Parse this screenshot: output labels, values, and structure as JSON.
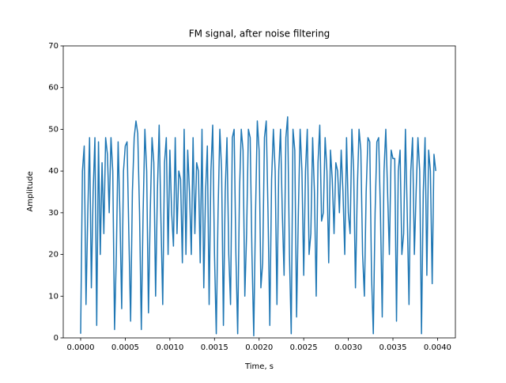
{
  "chart_data": {
    "type": "line",
    "title": "FM signal, after noise filtering",
    "xlabel": "Time, s",
    "ylabel": "Amplitude",
    "x": [
      0,
      2e-05,
      4e-05,
      6e-05,
      8e-05,
      0.0001,
      0.00012,
      0.00014,
      0.00016,
      0.00018,
      0.0002,
      0.00022,
      0.00024,
      0.00026,
      0.00028,
      0.0003,
      0.00032,
      0.00034,
      0.00036,
      0.00038,
      0.0004,
      0.00042,
      0.00044,
      0.00046,
      0.00048,
      0.0005,
      0.00052,
      0.00054,
      0.00056,
      0.00058,
      0.0006,
      0.00062,
      0.00064,
      0.00066,
      0.00068,
      0.0007,
      0.00072,
      0.00074,
      0.00076,
      0.00078,
      0.0008,
      0.00082,
      0.00084,
      0.00086,
      0.00088,
      0.0009,
      0.00092,
      0.00094,
      0.00096,
      0.00098,
      0.001,
      0.00102,
      0.00104,
      0.00106,
      0.00108,
      0.0011,
      0.00112,
      0.00114,
      0.00116,
      0.00118,
      0.0012,
      0.00122,
      0.00124,
      0.00126,
      0.00128,
      0.0013,
      0.00132,
      0.00134,
      0.00136,
      0.00138,
      0.0014,
      0.00142,
      0.00144,
      0.00146,
      0.00148,
      0.0015,
      0.00152,
      0.00154,
      0.00156,
      0.00158,
      0.0016,
      0.00162,
      0.00164,
      0.00166,
      0.00168,
      0.0017,
      0.00172,
      0.00174,
      0.00176,
      0.00178,
      0.0018,
      0.00182,
      0.00184,
      0.00186,
      0.00188,
      0.0019,
      0.00192,
      0.00194,
      0.00196,
      0.00198,
      0.002,
      0.00202,
      0.00204,
      0.00206,
      0.00208,
      0.0021,
      0.00212,
      0.00214,
      0.00216,
      0.00218,
      0.0022,
      0.00222,
      0.00224,
      0.00226,
      0.00228,
      0.0023,
      0.00232,
      0.00234,
      0.00236,
      0.00238,
      0.0024,
      0.00242,
      0.00244,
      0.00246,
      0.00248,
      0.0025,
      0.00252,
      0.00254,
      0.00256,
      0.00258,
      0.0026,
      0.00262,
      0.00264,
      0.00266,
      0.00268,
      0.0027,
      0.00272,
      0.00274,
      0.00276,
      0.00278,
      0.0028,
      0.00282,
      0.00284,
      0.00286,
      0.00288,
      0.0029,
      0.00292,
      0.00294,
      0.00296,
      0.00298,
      0.003,
      0.00302,
      0.00304,
      0.00306,
      0.00308,
      0.0031,
      0.00312,
      0.00314,
      0.00316,
      0.00318,
      0.0032,
      0.00322,
      0.00324,
      0.00326,
      0.00328,
      0.0033,
      0.00332,
      0.00334,
      0.00336,
      0.00338,
      0.0034,
      0.00342,
      0.00344,
      0.00346,
      0.00348,
      0.0035,
      0.00352,
      0.00354,
      0.00356,
      0.00358,
      0.0036,
      0.00362,
      0.00364,
      0.00366,
      0.00368,
      0.0037,
      0.00372,
      0.00374,
      0.00376,
      0.00378,
      0.0038,
      0.00382,
      0.00384,
      0.00386,
      0.00388,
      0.0039,
      0.00392,
      0.00394,
      0.00396,
      0.00398
    ],
    "series": [
      {
        "color": "#1f77b4",
        "values": [
          1,
          40,
          46,
          8,
          30,
          48,
          12,
          35,
          48,
          3,
          47,
          20,
          42,
          25,
          48,
          44,
          30,
          48,
          40,
          2,
          20,
          47,
          30,
          7,
          40,
          46,
          47,
          25,
          4,
          35,
          48,
          52,
          49,
          30,
          2,
          30,
          50,
          40,
          6,
          30,
          48,
          42,
          10,
          35,
          51,
          28,
          8,
          42,
          48,
          20,
          45,
          30,
          22,
          48,
          25,
          40,
          38,
          18,
          50,
          20,
          45,
          35,
          20,
          48,
          25,
          42,
          40,
          18,
          50,
          12,
          35,
          46,
          8,
          40,
          51,
          20,
          1,
          30,
          50,
          40,
          3,
          35,
          48,
          20,
          8,
          48,
          50,
          20,
          1,
          35,
          50,
          45,
          10,
          25,
          50,
          48,
          20,
          0.5,
          30,
          52,
          45,
          12,
          18,
          48,
          52,
          30,
          3,
          38,
          50,
          40,
          8,
          40,
          50,
          30,
          15,
          48,
          53,
          20,
          1,
          50,
          45,
          5,
          30,
          50,
          40,
          15,
          40,
          50,
          20,
          25,
          48,
          35,
          10,
          42,
          51,
          28,
          30,
          48,
          40,
          18,
          45,
          38,
          25,
          42,
          40,
          30,
          45,
          35,
          20,
          48,
          30,
          25,
          50,
          40,
          12,
          35,
          50,
          45,
          20,
          10,
          35,
          48,
          47,
          15,
          1,
          30,
          47,
          48,
          30,
          5,
          40,
          50,
          35,
          20,
          45,
          43,
          43,
          4,
          40,
          45,
          20,
          25,
          50,
          30,
          8,
          40,
          48,
          20,
          35,
          48,
          40,
          1,
          35,
          48,
          15,
          45,
          40,
          13,
          44,
          40
        ]
      }
    ],
    "xlim": [
      -0.000195,
      0.0042
    ],
    "ylim": [
      0,
      70
    ],
    "xticks": [
      {
        "value": 0,
        "label": "0.0000"
      },
      {
        "value": 0.0005,
        "label": "0.0005"
      },
      {
        "value": 0.001,
        "label": "0.0010"
      },
      {
        "value": 0.0015,
        "label": "0.0015"
      },
      {
        "value": 0.002,
        "label": "0.0020"
      },
      {
        "value": 0.0025,
        "label": "0.0025"
      },
      {
        "value": 0.003,
        "label": "0.0030"
      },
      {
        "value": 0.0035,
        "label": "0.0035"
      },
      {
        "value": 0.004,
        "label": "0.0040"
      }
    ],
    "yticks": [
      0,
      10,
      20,
      30,
      40,
      50,
      60,
      70
    ],
    "grid": false
  }
}
